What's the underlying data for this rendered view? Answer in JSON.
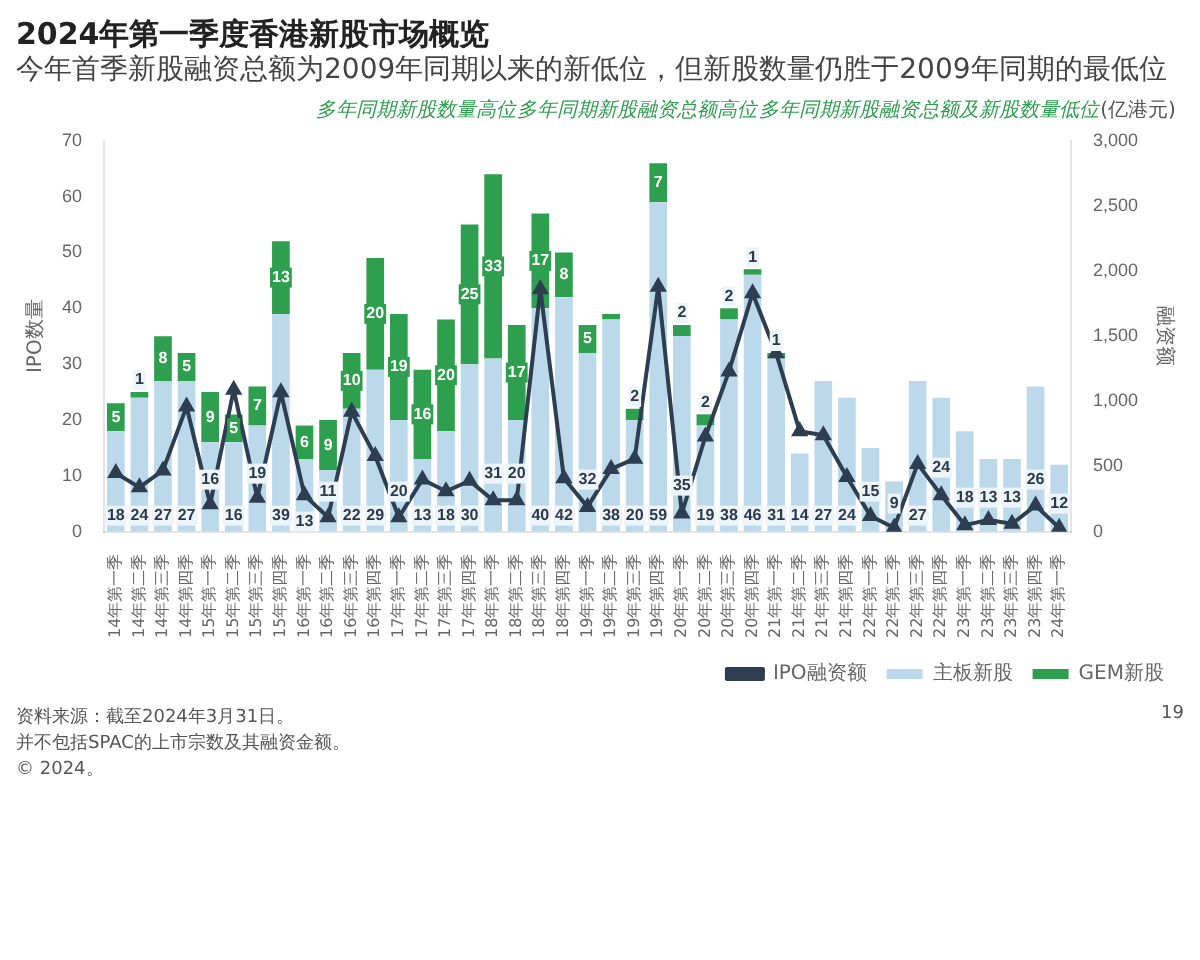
{
  "chart_data": {
    "type": "bar",
    "title": "2024年第一季度香港新股市场概览",
    "subtitle": "今年首季新股融资总额为2009年同期以来的新低位，但新股数量仍胜于2009年同期的最低位",
    "ylabel": "IPO数量",
    "y2label": "融资额",
    "categories": [
      "14年第一季",
      "14年第二季",
      "14年第三季",
      "14年第四季",
      "15年第一季",
      "15年第二季",
      "15年第三季",
      "15年第四季",
      "16年第一季",
      "16年第二季",
      "16年第三季",
      "16年第四季",
      "17年第一季",
      "17年第二季",
      "17年第三季",
      "17年第四季",
      "18年第一季",
      "18年第二季",
      "18年第三季",
      "18年第四季",
      "19年第一季",
      "19年第二季",
      "19年第三季",
      "19年第四季",
      "20年第一季",
      "20年第二季",
      "20年第三季",
      "20年第四季",
      "21年第一季",
      "21年第二季",
      "21年第三季",
      "21年第四季",
      "22年第一季",
      "22年第二季",
      "22年第三季",
      "22年第四季",
      "23年第一季",
      "23年第二季",
      "23年第三季",
      "23年第四季",
      "24年第一季"
    ],
    "series": [
      {
        "name": "主板新股",
        "type": "bar",
        "color": "#bcd9ec",
        "values": [
          18,
          24,
          27,
          27,
          16,
          16,
          19,
          39,
          13,
          11,
          22,
          29,
          20,
          13,
          18,
          30,
          31,
          20,
          40,
          42,
          32,
          38,
          20,
          59,
          35,
          19,
          38,
          46,
          31,
          14,
          27,
          24,
          15,
          9,
          27,
          24,
          18,
          13,
          13,
          26,
          12
        ],
        "value_labels": [
          "18",
          "24",
          "27",
          "27",
          "16",
          "16",
          "19",
          "39",
          "13",
          "11",
          "22",
          "29",
          "20",
          "13",
          "18",
          "30",
          "31",
          "20",
          "40",
          "42",
          "32",
          "38",
          "20",
          "59",
          "35",
          "19",
          "38",
          "46",
          "31",
          "14",
          "27",
          "24",
          "15",
          "9",
          "27",
          "24",
          "18",
          "13",
          "13",
          "26",
          "12"
        ]
      },
      {
        "name": "GEM新股",
        "type": "bar",
        "color": "#2e9e4f",
        "values": [
          5,
          1,
          8,
          5,
          9,
          5,
          7,
          13,
          6,
          9,
          10,
          20,
          19,
          16,
          20,
          25,
          33,
          17,
          17,
          8,
          5,
          1,
          2,
          7,
          2,
          2,
          2,
          1,
          1,
          0,
          0,
          0,
          0,
          0,
          0,
          0,
          0,
          0,
          0,
          0,
          0
        ],
        "value_labels": [
          "5",
          "1",
          "8",
          "5",
          "9",
          "5",
          "7",
          "13",
          "6",
          "9",
          "10",
          "20",
          "19",
          "16",
          "20",
          "25",
          "33",
          "17",
          "17",
          "8",
          "5",
          null,
          "2",
          "7",
          "2",
          "2",
          "2",
          "1",
          "1",
          null,
          null,
          null,
          null,
          null,
          null,
          null,
          null,
          null,
          null,
          null,
          null
        ]
      },
      {
        "name": "IPO融资额",
        "type": "line",
        "axis": "y2",
        "color": "#2d3e50",
        "values": [
          450,
          340,
          470,
          960,
          210,
          1090,
          260,
          1070,
          280,
          110,
          920,
          580,
          110,
          400,
          310,
          390,
          240,
          240,
          1860,
          410,
          190,
          480,
          560,
          1880,
          140,
          730,
          1230,
          1830,
          1370,
          770,
          740,
          420,
          120,
          30,
          520,
          280,
          50,
          90,
          60,
          200,
          30
        ]
      }
    ],
    "stacked": true,
    "ylim": [
      0,
      70
    ],
    "yticks": [
      0,
      10,
      20,
      30,
      40,
      50,
      60,
      70
    ],
    "y2lim": [
      0,
      3000
    ],
    "y2ticks": [
      0,
      500,
      {
        "value": 1000,
        "label": "1,000"
      },
      {
        "value": 1500,
        "label": "1,500"
      },
      {
        "value": 2000,
        "label": "2,000"
      },
      {
        "value": 2500,
        "label": "2,500"
      },
      {
        "value": 3000,
        "label": "3,000"
      }
    ],
    "grid": false,
    "legend": "bottom right",
    "marker": "triangle",
    "line_style": "solid",
    "annotations": [
      "多年同期新股数量高位",
      "多年同期新股融资总额高位",
      "多年同期新股融资总额及新股数量低位",
      "(亿港元)",
      "资料来源：截至2024年3月31日。",
      "并不包括SPAC的上市宗数及其融资金额。",
      "© 2024。",
      "19"
    ]
  }
}
